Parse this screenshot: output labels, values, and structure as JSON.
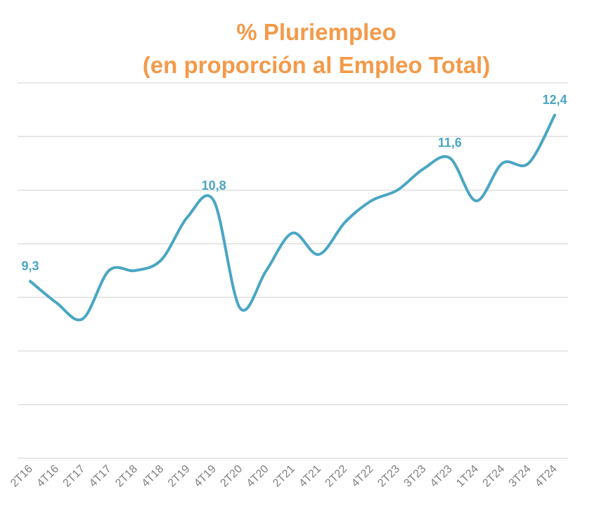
{
  "chart_data": {
    "type": "line",
    "title": "% Pluriempleo",
    "subtitle": "(en proporción al Empleo Total)",
    "xlabel": "",
    "ylabel": "",
    "categories": [
      "2T16",
      "4T16",
      "2T17",
      "4T17",
      "2T18",
      "4T18",
      "2T19",
      "4T19",
      "2T20",
      "4T20",
      "2T21",
      "4T21",
      "2T22",
      "4T22",
      "2T23",
      "3T23",
      "4T23",
      "1T24",
      "2T24",
      "3T24",
      "4T24"
    ],
    "series": [
      {
        "name": "",
        "values": [
          9.3,
          8.9,
          8.6,
          9.5,
          9.5,
          9.7,
          10.5,
          10.8,
          8.8,
          9.5,
          10.2,
          9.8,
          10.4,
          10.8,
          11.0,
          11.4,
          11.6,
          10.8,
          11.5,
          11.5,
          12.4
        ],
        "color": "#4aa6c4"
      }
    ],
    "data_labels": [
      {
        "index": 0,
        "text": "9,3"
      },
      {
        "index": 7,
        "text": "10,8"
      },
      {
        "index": 16,
        "text": "11,6"
      },
      {
        "index": 20,
        "text": "12,4"
      }
    ],
    "ylim": [
      6,
      13
    ],
    "gridlines": [
      6,
      7,
      8,
      9,
      10,
      11,
      12,
      13
    ],
    "grid": true,
    "colors": {
      "title": "#f39a4a",
      "line": "#4aa6c4",
      "grid": "#d9d9d9",
      "tick": "#7f7f7f"
    }
  }
}
